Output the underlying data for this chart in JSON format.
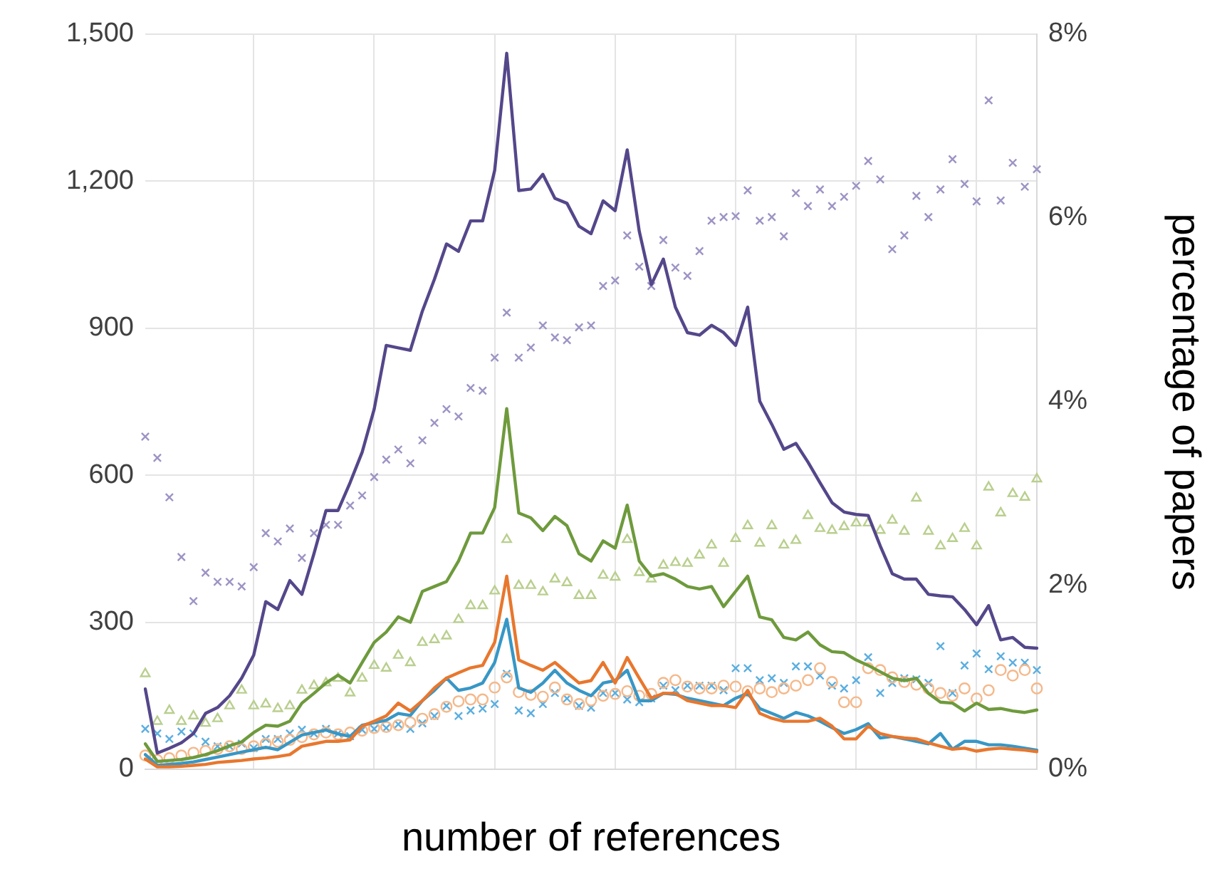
{
  "chart_data": {
    "type": "line",
    "xlabel": "number of references",
    "y2label": "percentage of papers",
    "categories": [
      null,
      null,
      null,
      null,
      null,
      null,
      null,
      null,
      null,
      null,
      null,
      null,
      null,
      null,
      null,
      null,
      null,
      null,
      null,
      null,
      null,
      null,
      null,
      null,
      null,
      null,
      null,
      null,
      null,
      null,
      null,
      null,
      null,
      null,
      null,
      null,
      null,
      null,
      null,
      null,
      null,
      null,
      null,
      null,
      null,
      null,
      null,
      null,
      null,
      null,
      null,
      null,
      null,
      null,
      null,
      null,
      null,
      null,
      null,
      null,
      null,
      null,
      null,
      null,
      null,
      null,
      null,
      null,
      null,
      null,
      null,
      null,
      null,
      null,
      null
    ],
    "ylim": [
      0,
      1500
    ],
    "yticks": [
      0,
      {
        "value": 300,
        "label": "300"
      },
      {
        "value": 600,
        "label": "600"
      },
      {
        "value": 900,
        "label": "900"
      },
      {
        "value": 1200,
        "label": "1,200"
      },
      {
        "value": 1500,
        "label": "1,500"
      }
    ],
    "y2lim": [
      0,
      8
    ],
    "y2ticks": [
      {
        "value": 0,
        "label": "0%"
      },
      {
        "value": 2,
        "label": "2%"
      },
      {
        "value": 4,
        "label": "4%"
      },
      {
        "value": 6,
        "label": "6%"
      },
      {
        "value": 8,
        "label": "8%"
      }
    ],
    "grid": true,
    "legend": false,
    "line_style": "solid",
    "series": [
      {
        "marker": "none",
        "color": "#55478a",
        "values": [
          164,
          33,
          43,
          54,
          73,
          114,
          126,
          150,
          186,
          233,
          342,
          326,
          385,
          357,
          440,
          528,
          528,
          585,
          647,
          735,
          865,
          860,
          855,
          935,
          1000,
          1072,
          1057,
          1119,
          1119,
          1222,
          1461,
          1181,
          1184,
          1214,
          1165,
          1155,
          1108,
          1093,
          1160,
          1140,
          1264,
          1098,
          989,
          1041,
          943,
          891,
          886,
          906,
          891,
          865,
          943,
          751,
          704,
          653,
          665,
          627,
          585,
          544,
          525,
          520,
          518,
          456,
          399,
          388,
          388,
          357,
          354,
          352,
          326,
          295,
          334,
          264,
          269,
          249,
          247
        ]
      },
      {
        "marker": "none",
        "color": "#6e9a3c",
        "values": [
          52,
          16,
          18,
          20,
          24,
          30,
          38,
          48,
          56,
          75,
          90,
          88,
          98,
          135,
          155,
          176,
          192,
          176,
          218,
          259,
          280,
          311,
          300,
          363,
          373,
          383,
          425,
          482,
          482,
          534,
          736,
          523,
          513,
          487,
          516,
          497,
          440,
          425,
          466,
          451,
          539,
          425,
          394,
          399,
          388,
          373,
          368,
          373,
          332,
          363,
          394,
          311,
          305,
          269,
          264,
          280,
          254,
          240,
          238,
          223,
          212,
          199,
          186,
          181,
          186,
          155,
          137,
          135,
          119,
          135,
          122,
          124,
          119,
          116,
          121
        ]
      },
      {
        "marker": "none",
        "color": "#e8772e",
        "values": [
          21,
          5,
          5,
          6,
          8,
          10,
          14,
          16,
          18,
          21,
          23,
          26,
          30,
          47,
          52,
          57,
          57,
          60,
          88,
          98,
          109,
          135,
          119,
          140,
          166,
          186,
          197,
          207,
          212,
          259,
          394,
          223,
          212,
          202,
          218,
          197,
          176,
          181,
          218,
          176,
          228,
          186,
          145,
          155,
          155,
          140,
          135,
          130,
          130,
          126,
          161,
          114,
          104,
          98,
          98,
          98,
          104,
          88,
          62,
          62,
          88,
          73,
          67,
          64,
          62,
          54,
          47,
          41,
          43,
          37,
          41,
          43,
          41,
          39,
          36
        ]
      },
      {
        "marker": "none",
        "color": "#3797c6",
        "values": [
          30,
          8,
          10,
          12,
          15,
          20,
          25,
          30,
          35,
          40,
          45,
          40,
          55,
          70,
          75,
          80,
          72,
          67,
          90,
          95,
          100,
          114,
          110,
          140,
          161,
          186,
          161,
          166,
          176,
          218,
          306,
          166,
          157,
          176,
          202,
          176,
          161,
          150,
          176,
          181,
          202,
          140,
          140,
          155,
          153,
          145,
          140,
          135,
          130,
          145,
          155,
          124,
          114,
          104,
          116,
          109,
          98,
          85,
          73,
          81,
          93,
          64,
          67,
          62,
          57,
          52,
          73,
          41,
          57,
          57,
          50,
          50,
          47,
          43,
          39
        ]
      },
      {
        "type": "scatter",
        "axis": "y2",
        "marker": "cross",
        "color": "#9d93c4",
        "values": [
          3.62,
          3.39,
          2.96,
          2.31,
          1.83,
          2.14,
          2.04,
          2.04,
          1.99,
          2.2,
          2.57,
          2.48,
          2.62,
          2.3,
          2.57,
          2.66,
          2.66,
          2.87,
          2.98,
          3.18,
          3.37,
          3.48,
          3.33,
          3.58,
          3.77,
          3.92,
          3.84,
          4.15,
          4.12,
          4.48,
          4.97,
          4.48,
          4.59,
          4.83,
          4.7,
          4.67,
          4.81,
          4.83,
          5.26,
          5.32,
          5.81,
          5.47,
          5.26,
          5.76,
          5.46,
          5.37,
          5.64,
          5.97,
          6.01,
          6.02,
          6.3,
          5.97,
          6.01,
          5.8,
          6.27,
          6.13,
          6.31,
          6.13,
          6.23,
          6.35,
          6.62,
          6.42,
          5.66,
          5.81,
          6.24,
          6.01,
          6.31,
          6.64,
          6.37,
          6.18,
          7.28,
          6.19,
          6.6,
          6.34,
          6.53
        ]
      },
      {
        "type": "scatter",
        "axis": "y2",
        "marker": "triangle",
        "color": "#b9cf8e",
        "values": [
          1.04,
          0.52,
          0.64,
          0.52,
          0.58,
          0.5,
          0.55,
          0.69,
          0.86,
          0.69,
          0.71,
          0.66,
          0.69,
          0.86,
          0.91,
          0.94,
          0.99,
          0.83,
          0.99,
          1.13,
          1.1,
          1.24,
          1.16,
          1.38,
          1.41,
          1.45,
          1.63,
          1.78,
          1.78,
          1.94,
          2.5,
          2.0,
          2.0,
          1.93,
          2.07,
          2.03,
          1.89,
          1.89,
          2.11,
          2.09,
          2.5,
          2.14,
          2.07,
          2.22,
          2.25,
          2.24,
          2.33,
          2.44,
          2.24,
          2.51,
          2.65,
          2.46,
          2.65,
          2.44,
          2.49,
          2.76,
          2.62,
          2.6,
          2.64,
          2.68,
          2.68,
          2.6,
          2.71,
          2.59,
          2.95,
          2.59,
          2.43,
          2.51,
          2.62,
          2.43,
          3.07,
          2.79,
          3.0,
          2.96,
          3.16
        ]
      },
      {
        "type": "scatter",
        "axis": "y2",
        "marker": "circle",
        "color": "#f5b88a",
        "values": [
          0.15,
          0.1,
          0.12,
          0.15,
          0.18,
          0.2,
          0.22,
          0.25,
          0.22,
          0.25,
          0.28,
          0.3,
          0.32,
          0.35,
          0.38,
          0.4,
          0.38,
          0.4,
          0.42,
          0.45,
          0.46,
          0.48,
          0.51,
          0.55,
          0.6,
          0.68,
          0.74,
          0.76,
          0.76,
          0.89,
          1.0,
          0.84,
          0.81,
          0.79,
          0.89,
          0.76,
          0.71,
          0.75,
          0.8,
          0.82,
          0.85,
          0.8,
          0.82,
          0.94,
          0.97,
          0.9,
          0.88,
          0.88,
          0.91,
          0.9,
          0.85,
          0.88,
          0.84,
          0.88,
          0.91,
          0.97,
          1.1,
          0.95,
          0.73,
          0.73,
          1.1,
          1.08,
          1.0,
          0.95,
          0.92,
          0.88,
          0.83,
          0.8,
          0.88,
          0.77,
          0.86,
          1.08,
          1.02,
          1.08,
          0.88
        ]
      },
      {
        "type": "scatter",
        "axis": "y2",
        "marker": "cross",
        "color": "#5aaee0",
        "values": [
          0.44,
          0.39,
          0.33,
          0.41,
          0.39,
          0.3,
          0.25,
          0.25,
          0.28,
          0.23,
          0.33,
          0.33,
          0.39,
          0.43,
          0.39,
          0.44,
          0.39,
          0.36,
          0.43,
          0.44,
          0.45,
          0.49,
          0.44,
          0.5,
          0.58,
          0.69,
          0.58,
          0.64,
          0.66,
          0.71,
          1.04,
          0.64,
          0.61,
          0.71,
          0.83,
          0.77,
          0.69,
          0.67,
          0.83,
          0.83,
          0.76,
          0.73,
          0.77,
          0.91,
          0.86,
          0.91,
          0.91,
          0.91,
          0.86,
          1.1,
          1.1,
          0.97,
          0.99,
          0.94,
          1.12,
          1.12,
          1.02,
          0.91,
          0.88,
          0.97,
          1.22,
          0.83,
          0.94,
          0.99,
          0.98,
          0.94,
          1.34,
          0.83,
          1.13,
          1.26,
          1.09,
          1.23,
          1.16,
          1.16,
          1.08
        ]
      }
    ]
  }
}
